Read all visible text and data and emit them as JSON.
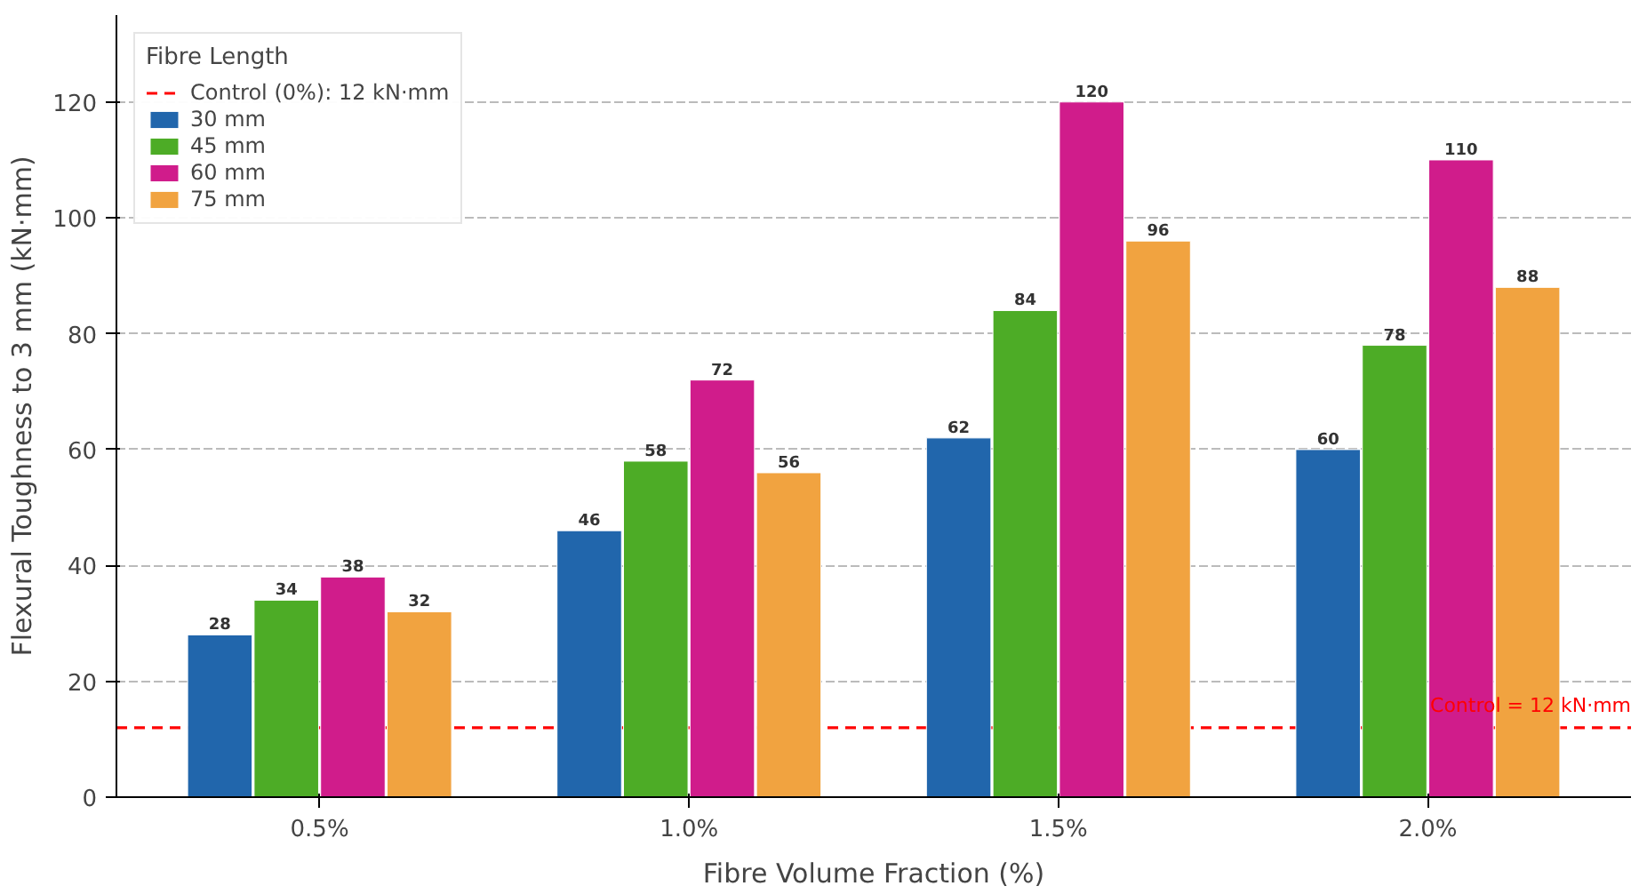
{
  "chart_data": {
    "type": "bar",
    "xlabel": "Fibre Volume Fraction (%)",
    "ylabel": "Flexural Toughness to 3 mm (kN·mm)",
    "legend_title": "Fibre Length",
    "categories": [
      "0.5%",
      "1.0%",
      "1.5%",
      "2.0%"
    ],
    "series": [
      {
        "name": "30 mm",
        "color": "#2166ac",
        "values": [
          28,
          46,
          62,
          60
        ]
      },
      {
        "name": "45 mm",
        "color": "#4dac26",
        "values": [
          34,
          58,
          84,
          78
        ]
      },
      {
        "name": "60 mm",
        "color": "#d01c8b",
        "values": [
          38,
          72,
          120,
          110
        ]
      },
      {
        "name": "75 mm",
        "color": "#f1a340",
        "values": [
          32,
          56,
          96,
          88
        ]
      }
    ],
    "ylim": [
      0,
      135
    ],
    "yticks": [
      0,
      20,
      40,
      60,
      80,
      100,
      120
    ],
    "grid": "y",
    "legend": "top left",
    "data_labels": true,
    "ref_lines": [
      {
        "axis": "y",
        "value": 12,
        "label": "Control (0%): 12 kN·mm",
        "color": "#ff0000",
        "line_style": "dashed"
      }
    ],
    "annotations": [
      {
        "text": "Control = 12 kN·mm",
        "y": 12
      }
    ]
  }
}
